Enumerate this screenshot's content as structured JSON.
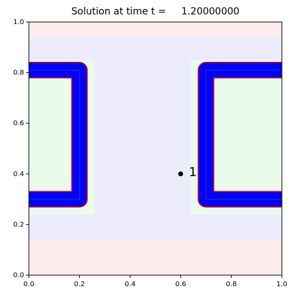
{
  "chart_data": {
    "type": "field",
    "title": "Solution at time t =     1.20000000",
    "xlim": [
      0,
      1
    ],
    "ylim": [
      0,
      1
    ],
    "xticks": [
      {
        "value": 0,
        "label": "0.0"
      },
      {
        "value": 0.2,
        "label": "0.2"
      },
      {
        "value": 0.4,
        "label": "0.4"
      },
      {
        "value": 0.6,
        "label": "0.6"
      },
      {
        "value": 0.8,
        "label": "0.8"
      },
      {
        "value": 1,
        "label": "1.0"
      }
    ],
    "yticks": [
      {
        "value": 0,
        "label": "0.0"
      },
      {
        "value": 0.2,
        "label": "0.2"
      },
      {
        "value": 0.4,
        "label": "0.4"
      },
      {
        "value": 0.6,
        "label": "0.6"
      },
      {
        "value": 0.8,
        "label": "0.8"
      },
      {
        "value": 1,
        "label": "1.0"
      }
    ],
    "regions": [
      {
        "xlim": [
          0,
          1
        ],
        "ylim": [
          0,
          1
        ],
        "color": "#fdecec"
      },
      {
        "xlim": [
          0,
          1
        ],
        "ylim": [
          0.14,
          0.94
        ],
        "color": "#ebebfb"
      },
      {
        "xlim": [
          0,
          0.26
        ],
        "ylim": [
          0.24,
          0.85
        ],
        "color": "#ebfbeb"
      },
      {
        "xlim": [
          0.64,
          1
        ],
        "ylim": [
          0.24,
          0.85
        ],
        "color": "#ebfbeb"
      }
    ],
    "series": [
      {
        "color": "#0000ff",
        "outline": "#e00000",
        "x": [
          0,
          0.2,
          0.2,
          0
        ],
        "y": [
          0.81,
          0.81,
          0.3,
          0.3
        ]
      },
      {
        "color": "#0000ff",
        "outline": "#e00000",
        "x": [
          1,
          0.7,
          0.7,
          1
        ],
        "y": [
          0.81,
          0.81,
          0.3,
          0.3
        ]
      }
    ],
    "points": [
      {
        "x": 0.6,
        "y": 0.4,
        "label": "1",
        "color": "#000000"
      }
    ]
  }
}
